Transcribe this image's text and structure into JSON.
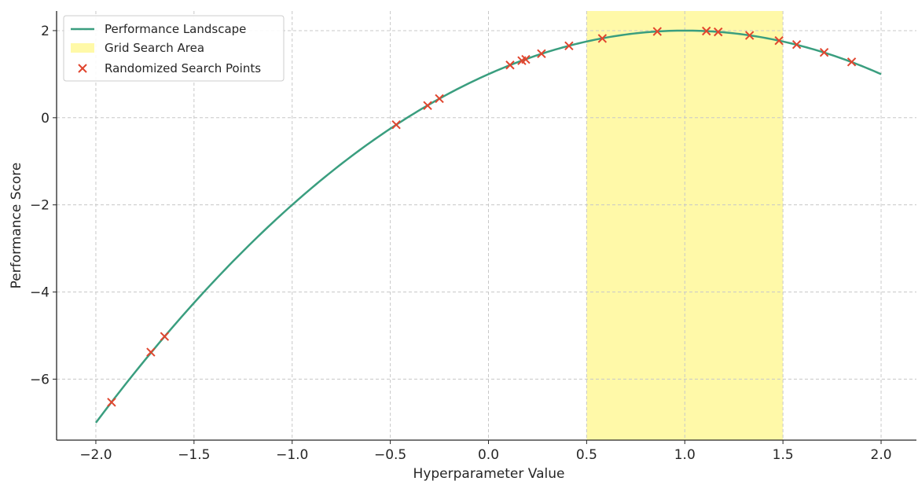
{
  "chart_data": {
    "type": "line",
    "title": "",
    "xlabel": "Hyperparameter Value",
    "ylabel": "Performance Score",
    "xlim": [
      -2.2,
      2.18
    ],
    "ylim": [
      -7.4,
      2.45
    ],
    "xticks": [
      -2.0,
      -1.5,
      -1.0,
      -0.5,
      0.0,
      0.5,
      1.0,
      1.5,
      2.0
    ],
    "xtick_labels": [
      "−2.0",
      "−1.5",
      "−1.0",
      "−0.5",
      "0.0",
      "0.5",
      "1.0",
      "1.5",
      "2.0"
    ],
    "yticks": [
      -6,
      -4,
      -2,
      0,
      2
    ],
    "ytick_labels": [
      "−6",
      "−4",
      "−2",
      "0",
      "2"
    ],
    "grid": true,
    "legend_position": "top-left",
    "line_series": {
      "name": "Performance Landscape",
      "color": "#3a9e7f",
      "function": "y = -(x - 1)^2 + 2",
      "x_range": [
        -2.0,
        2.0
      ]
    },
    "region": {
      "name": "Grid Search Area",
      "x_range": [
        0.5,
        1.5
      ],
      "color": "#fff9a8"
    },
    "scatter_series": {
      "name": "Randomized Search Points",
      "marker": "x",
      "color": "#e0452e",
      "x": [
        -1.92,
        -1.72,
        -1.65,
        -0.47,
        -0.31,
        -0.25,
        0.11,
        0.17,
        0.19,
        0.27,
        0.41,
        0.58,
        0.86,
        1.11,
        1.17,
        1.33,
        1.48,
        1.57,
        1.71,
        1.85
      ],
      "y": [
        -6.53,
        -5.38,
        -5.02,
        -0.16,
        0.28,
        0.44,
        1.21,
        1.31,
        1.34,
        1.47,
        1.65,
        1.82,
        1.98,
        1.99,
        1.97,
        1.89,
        1.77,
        1.68,
        1.5,
        1.28
      ]
    }
  }
}
